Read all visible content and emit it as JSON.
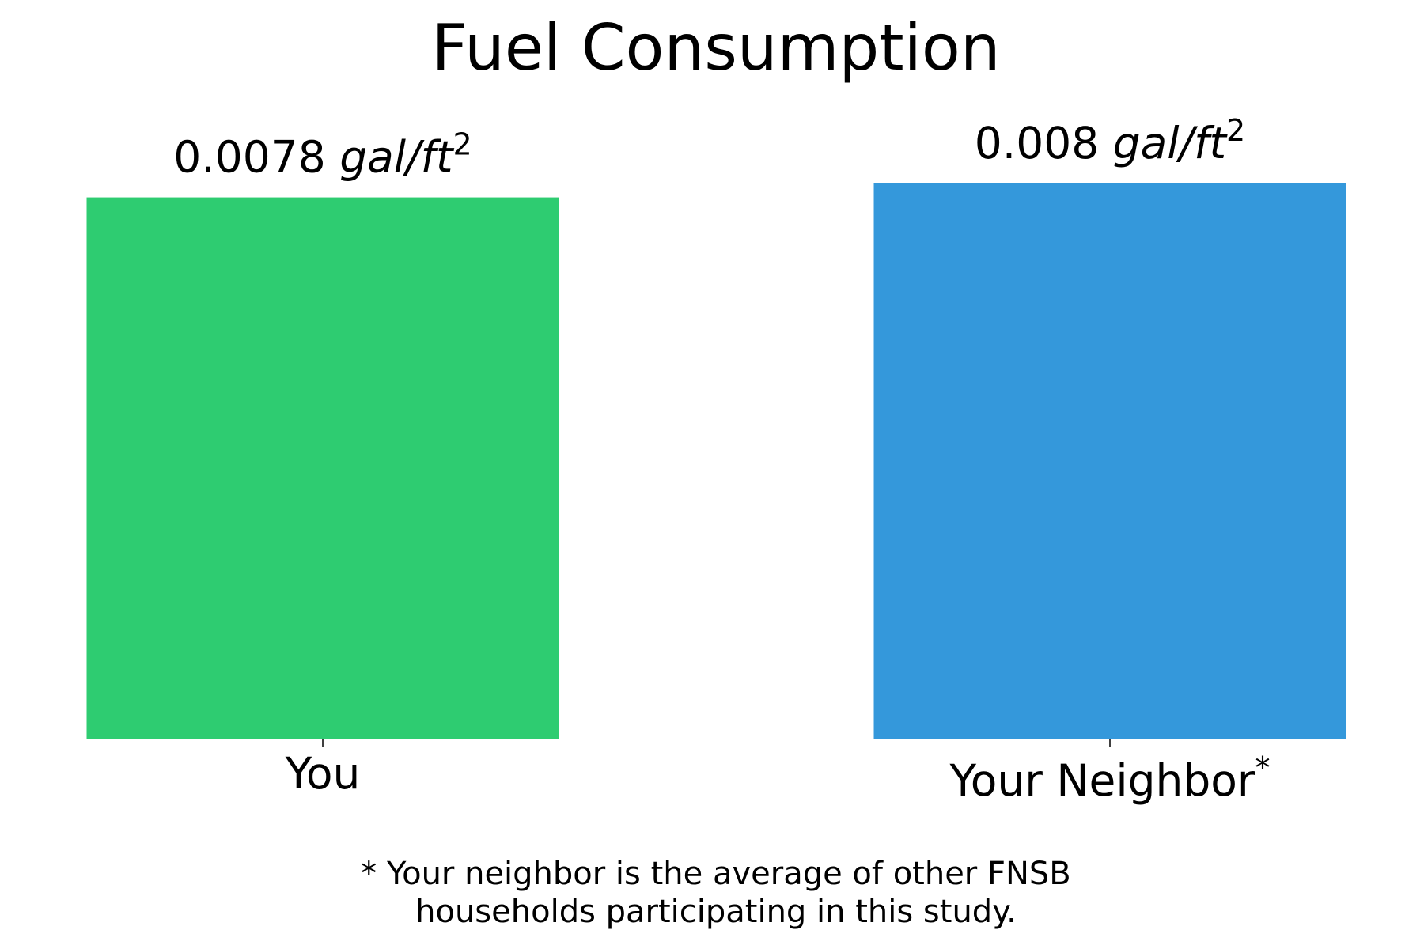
{
  "chart_data": {
    "type": "bar",
    "title": "Fuel Consumption",
    "categories": [
      "You",
      "Your Neighbor"
    ],
    "category_marks": [
      "",
      "*"
    ],
    "values": [
      0.0078,
      0.008
    ],
    "value_labels": [
      "0.0078",
      "0.008"
    ],
    "value_unit": "gal/ft",
    "value_unit_exponent": "2",
    "colors": [
      "#2ecc71",
      "#3498db"
    ],
    "ylim": [
      0,
      0.008
    ],
    "grid": false,
    "legend": "none"
  },
  "footnote": {
    "line1": "* Your neighbor is the average of other FNSB",
    "line2": "households participating in this study."
  }
}
